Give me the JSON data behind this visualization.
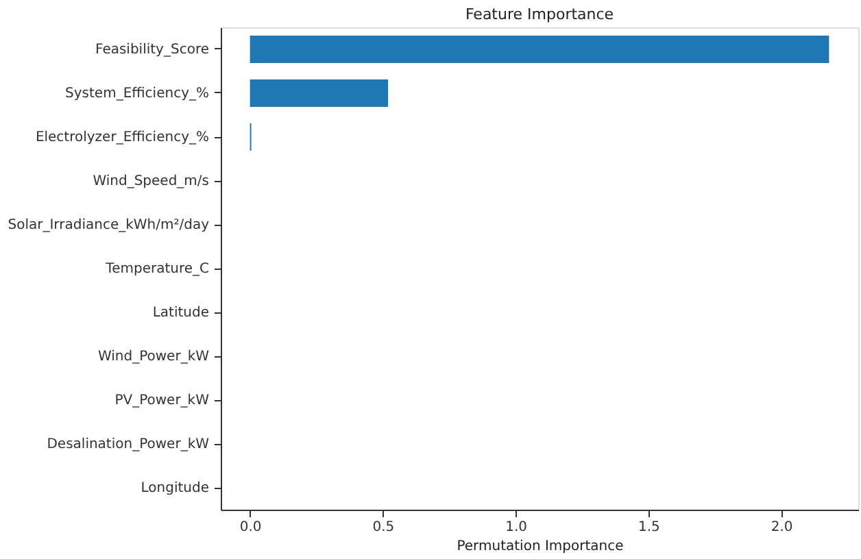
{
  "chart_data": {
    "type": "bar",
    "orientation": "horizontal",
    "title": "Feature Importance",
    "xlabel": "Permutation Importance",
    "categories": [
      "Feasibility_Score",
      "System_Efficiency_%",
      "Electrolyzer_Efficiency_%",
      "Wind_Speed_m/s",
      "Solar_Irradiance_kWh/m²/day",
      "Temperature_C",
      "Latitude",
      "Wind_Power_kW",
      "PV_Power_kW",
      "Desalination_Power_kW",
      "Longitude"
    ],
    "values": [
      2.18,
      0.52,
      0.005,
      0,
      0,
      0,
      0,
      0,
      0,
      0,
      0
    ],
    "color": "#1f77b4",
    "xlim": [
      -0.11,
      2.29
    ],
    "xticks": [
      {
        "value": 0,
        "label": "0.0"
      },
      {
        "value": 0.5,
        "label": "0.5"
      },
      {
        "value": 1,
        "label": "1.0"
      },
      {
        "value": 1.5,
        "label": "1.5"
      },
      {
        "value": 2,
        "label": "2.0"
      }
    ],
    "grid": false
  }
}
